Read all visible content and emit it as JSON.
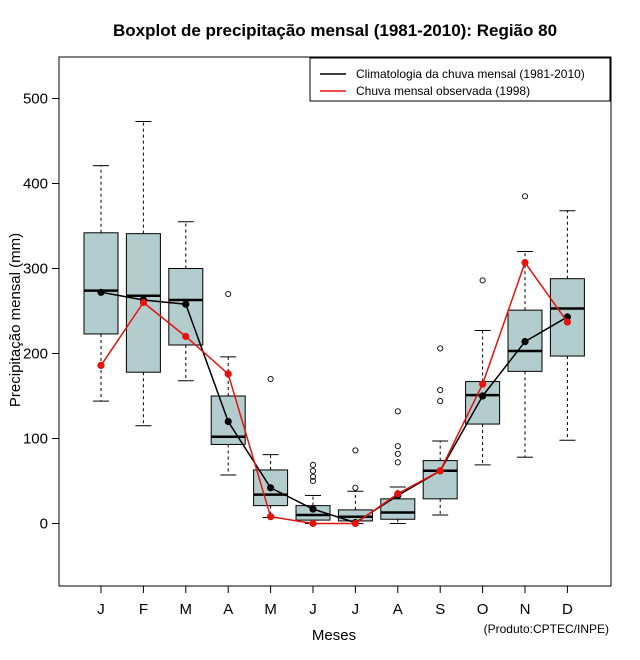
{
  "chart_data": {
    "type": "boxplot",
    "title": "Boxplot de precipitação mensal (1981-2010): Região 80",
    "xlabel": "Meses",
    "ylabel": "Precipitação mensal (mm)",
    "ylim": [
      -75,
      545
    ],
    "yticks": [
      0,
      100,
      200,
      300,
      400,
      500
    ],
    "categories": [
      "J",
      "F",
      "M",
      "A",
      "M",
      "J",
      "J",
      "A",
      "S",
      "O",
      "N",
      "D"
    ],
    "box_fill_color": "#b3cccd",
    "boxes": [
      {
        "whisker_low": 144,
        "q1": 223,
        "median": 274,
        "q3": 342,
        "whisker_high": 421,
        "outliers": []
      },
      {
        "whisker_low": 115,
        "q1": 178,
        "median": 268,
        "q3": 341,
        "whisker_high": 473,
        "outliers": []
      },
      {
        "whisker_low": 168,
        "q1": 210,
        "median": 263,
        "q3": 300,
        "whisker_high": 355,
        "outliers": []
      },
      {
        "whisker_low": 57,
        "q1": 93,
        "median": 102,
        "q3": 150,
        "whisker_high": 196,
        "outliers": [
          270
        ]
      },
      {
        "whisker_low": 7,
        "q1": 21,
        "median": 34,
        "q3": 63,
        "whisker_high": 81,
        "outliers": [
          170
        ]
      },
      {
        "whisker_low": 0,
        "q1": 4,
        "median": 10,
        "q3": 21,
        "whisker_high": 33,
        "outliers": [
          50,
          55,
          62,
          69
        ]
      },
      {
        "whisker_low": 0,
        "q1": 3,
        "median": 8,
        "q3": 16,
        "whisker_high": 38,
        "outliers": [
          42,
          86
        ]
      },
      {
        "whisker_low": 0,
        "q1": 5,
        "median": 13,
        "q3": 29,
        "whisker_high": 43,
        "outliers": [
          72,
          82,
          91,
          132
        ]
      },
      {
        "whisker_low": 10,
        "q1": 29,
        "median": 62,
        "q3": 74,
        "whisker_high": 97,
        "outliers": [
          144,
          157,
          206
        ]
      },
      {
        "whisker_low": 69,
        "q1": 117,
        "median": 151,
        "q3": 167,
        "whisker_high": 227,
        "outliers": [
          286
        ]
      },
      {
        "whisker_low": 78,
        "q1": 179,
        "median": 203,
        "q3": 251,
        "whisker_high": 320,
        "outliers": [
          385
        ]
      },
      {
        "whisker_low": 98,
        "q1": 197,
        "median": 253,
        "q3": 288,
        "whisker_high": 368,
        "outliers": []
      }
    ],
    "series": [
      {
        "name": "Climatologia da chuva mensal (1981-2010)",
        "color": "#000000",
        "values": [
          272,
          263,
          258,
          120,
          42,
          17,
          1,
          33,
          62,
          150,
          214,
          243
        ]
      },
      {
        "name": "Chuva mensal observada (1998)",
        "color": "#e8120c",
        "values": [
          186,
          260,
          220,
          176,
          8,
          0,
          0,
          35,
          62,
          164,
          307,
          237
        ]
      }
    ],
    "legend_position": "top-right",
    "credit": "(Produto:CPTEC/INPE)"
  }
}
